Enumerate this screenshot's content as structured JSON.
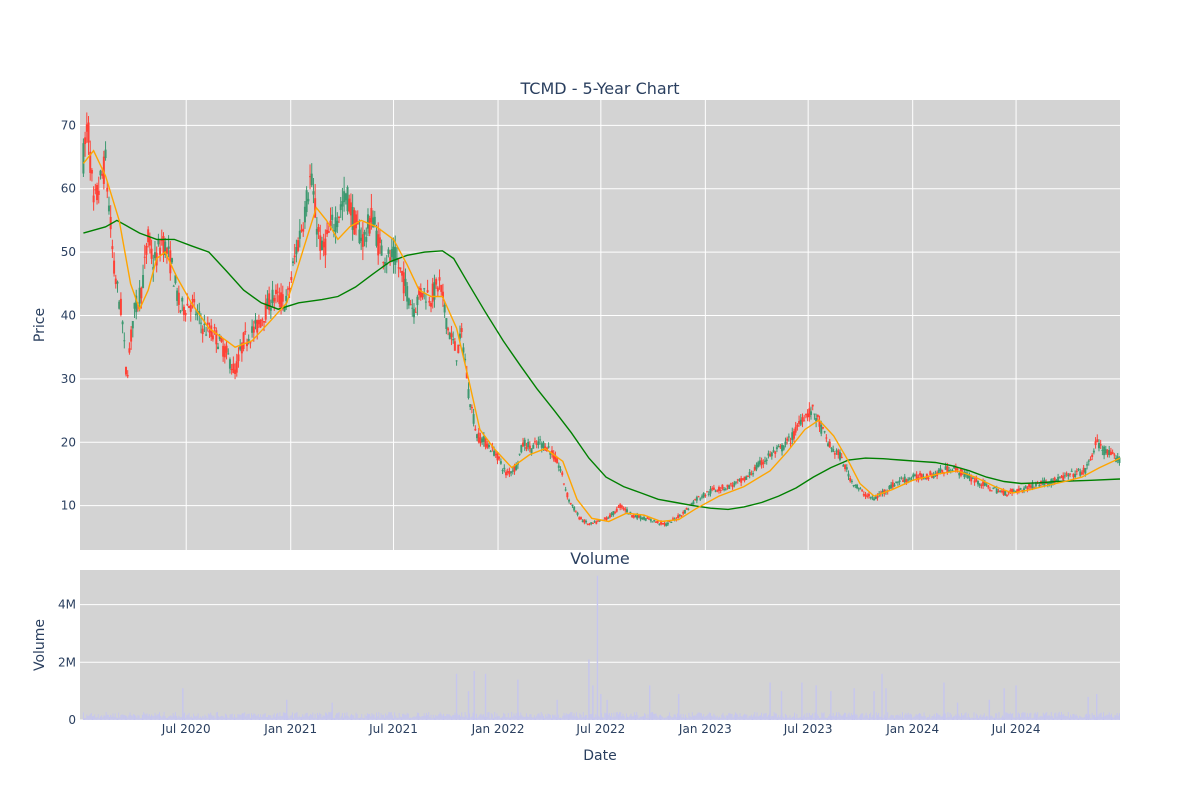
{
  "chart_data": [
    {
      "type": "candlestick",
      "title": "TCMD - 5-Year Chart",
      "ylabel": "Price",
      "ylim": [
        3,
        74
      ],
      "yticks": [
        10,
        20,
        30,
        40,
        50,
        60,
        70
      ],
      "xlim": [
        "2019-12-27",
        "2024-12-31"
      ],
      "xticks": [
        {
          "date": "2020-07-01",
          "label": "Jul 2020"
        },
        {
          "date": "2021-01-01",
          "label": "Jan 2021"
        },
        {
          "date": "2021-07-01",
          "label": "Jul 2021"
        },
        {
          "date": "2022-01-01",
          "label": "Jan 2022"
        },
        {
          "date": "2022-07-01",
          "label": "Jul 2022"
        },
        {
          "date": "2023-01-01",
          "label": "Jan 2023"
        },
        {
          "date": "2023-07-01",
          "label": "Jul 2023"
        },
        {
          "date": "2024-01-01",
          "label": "Jan 2024"
        },
        {
          "date": "2024-07-01",
          "label": "Jul 2024"
        }
      ],
      "grid": true,
      "colors": {
        "increasing": "#3d9970",
        "decreasing": "#ff4136",
        "ma_short": "#ffa500",
        "ma_long": "#008000",
        "plot_bg": "#d3d3d3"
      },
      "price_path": [
        [
          "2020-01-02",
          65
        ],
        [
          "2020-01-10",
          70
        ],
        [
          "2020-01-20",
          57
        ],
        [
          "2020-02-10",
          64
        ],
        [
          "2020-02-25",
          47
        ],
        [
          "2020-03-10",
          40
        ],
        [
          "2020-03-18",
          30
        ],
        [
          "2020-03-30",
          40
        ],
        [
          "2020-04-15",
          45
        ],
        [
          "2020-04-25",
          52
        ],
        [
          "2020-05-05",
          48
        ],
        [
          "2020-05-20",
          52
        ],
        [
          "2020-06-05",
          48
        ],
        [
          "2020-06-20",
          41
        ],
        [
          "2020-07-10",
          42
        ],
        [
          "2020-08-01",
          38
        ],
        [
          "2020-08-20",
          37
        ],
        [
          "2020-09-10",
          34
        ],
        [
          "2020-09-25",
          31
        ],
        [
          "2020-10-10",
          36
        ],
        [
          "2020-11-01",
          38
        ],
        [
          "2020-12-01",
          43
        ],
        [
          "2020-12-25",
          42
        ],
        [
          "2021-01-10",
          50
        ],
        [
          "2021-01-25",
          56
        ],
        [
          "2021-02-05",
          62
        ],
        [
          "2021-02-15",
          55
        ],
        [
          "2021-02-25",
          50
        ],
        [
          "2021-03-10",
          53
        ],
        [
          "2021-03-25",
          56
        ],
        [
          "2021-04-10",
          59
        ],
        [
          "2021-04-25",
          54
        ],
        [
          "2021-05-10",
          52
        ],
        [
          "2021-05-25",
          56
        ],
        [
          "2021-06-05",
          51
        ],
        [
          "2021-06-20",
          49
        ],
        [
          "2021-07-05",
          49
        ],
        [
          "2021-07-20",
          45
        ],
        [
          "2021-08-05",
          41
        ],
        [
          "2021-08-20",
          44
        ],
        [
          "2021-09-05",
          43
        ],
        [
          "2021-09-20",
          45
        ],
        [
          "2021-10-05",
          38
        ],
        [
          "2021-10-20",
          34
        ],
        [
          "2021-10-30",
          37
        ],
        [
          "2021-11-10",
          28
        ],
        [
          "2021-11-25",
          21
        ],
        [
          "2021-12-10",
          20
        ],
        [
          "2021-12-30",
          18
        ],
        [
          "2022-01-15",
          15
        ],
        [
          "2022-02-01",
          16
        ],
        [
          "2022-02-15",
          20
        ],
        [
          "2022-03-01",
          19
        ],
        [
          "2022-03-15",
          20
        ],
        [
          "2022-04-01",
          19
        ],
        [
          "2022-04-20",
          16
        ],
        [
          "2022-05-05",
          11
        ],
        [
          "2022-05-25",
          8
        ],
        [
          "2022-06-10",
          7
        ],
        [
          "2022-06-30",
          7.5
        ],
        [
          "2022-07-20",
          8.5
        ],
        [
          "2022-08-05",
          10
        ],
        [
          "2022-08-25",
          8.5
        ],
        [
          "2022-09-15",
          8
        ],
        [
          "2022-10-05",
          7.5
        ],
        [
          "2022-10-25",
          7
        ],
        [
          "2022-11-10",
          8
        ],
        [
          "2022-11-25",
          9
        ],
        [
          "2022-12-15",
          11
        ],
        [
          "2023-01-15",
          12.5
        ],
        [
          "2023-02-10",
          13
        ],
        [
          "2023-03-10",
          14
        ],
        [
          "2023-04-01",
          16
        ],
        [
          "2023-04-25",
          18
        ],
        [
          "2023-05-15",
          19
        ],
        [
          "2023-06-05",
          21
        ],
        [
          "2023-06-20",
          24
        ],
        [
          "2023-07-10",
          25
        ],
        [
          "2023-07-25",
          22
        ],
        [
          "2023-08-10",
          19
        ],
        [
          "2023-08-25",
          18
        ],
        [
          "2023-09-15",
          14
        ],
        [
          "2023-10-05",
          12
        ],
        [
          "2023-10-25",
          11
        ],
        [
          "2023-11-15",
          12.5
        ],
        [
          "2023-12-10",
          14
        ],
        [
          "2024-01-10",
          14.5
        ],
        [
          "2024-02-10",
          15
        ],
        [
          "2024-03-10",
          16
        ],
        [
          "2024-04-10",
          14.5
        ],
        [
          "2024-05-10",
          13
        ],
        [
          "2024-06-10",
          12
        ],
        [
          "2024-07-10",
          12.5
        ],
        [
          "2024-08-10",
          13.5
        ],
        [
          "2024-09-10",
          14
        ],
        [
          "2024-10-10",
          15
        ],
        [
          "2024-11-01",
          15.5
        ],
        [
          "2024-11-20",
          20
        ],
        [
          "2024-12-05",
          18.5
        ],
        [
          "2024-12-31",
          17
        ]
      ],
      "ma_short_path": [
        [
          "2020-01-02",
          64
        ],
        [
          "2020-01-20",
          66
        ],
        [
          "2020-02-10",
          62
        ],
        [
          "2020-03-05",
          55
        ],
        [
          "2020-03-25",
          45
        ],
        [
          "2020-04-10",
          41
        ],
        [
          "2020-04-25",
          44
        ],
        [
          "2020-05-10",
          49
        ],
        [
          "2020-05-25",
          50
        ],
        [
          "2020-06-15",
          46
        ],
        [
          "2020-07-10",
          42
        ],
        [
          "2020-08-10",
          38
        ],
        [
          "2020-09-10",
          36
        ],
        [
          "2020-09-25",
          35
        ],
        [
          "2020-10-25",
          36
        ],
        [
          "2020-11-25",
          39
        ],
        [
          "2020-12-25",
          42
        ],
        [
          "2021-01-25",
          51
        ],
        [
          "2021-02-15",
          57
        ],
        [
          "2021-03-05",
          55
        ],
        [
          "2021-03-25",
          52
        ],
        [
          "2021-04-15",
          54
        ],
        [
          "2021-05-05",
          55
        ],
        [
          "2021-06-01",
          54
        ],
        [
          "2021-07-01",
          52
        ],
        [
          "2021-07-25",
          48
        ],
        [
          "2021-08-15",
          44
        ],
        [
          "2021-09-05",
          43
        ],
        [
          "2021-09-25",
          43
        ],
        [
          "2021-10-20",
          38
        ],
        [
          "2021-11-10",
          30
        ],
        [
          "2021-11-30",
          22
        ],
        [
          "2021-12-25",
          19
        ],
        [
          "2022-01-25",
          16
        ],
        [
          "2022-02-25",
          18
        ],
        [
          "2022-03-25",
          19
        ],
        [
          "2022-04-25",
          17
        ],
        [
          "2022-05-20",
          11
        ],
        [
          "2022-06-15",
          8
        ],
        [
          "2022-07-15",
          7.5
        ],
        [
          "2022-08-15",
          8.8
        ],
        [
          "2022-09-15",
          8.5
        ],
        [
          "2022-10-15",
          7.5
        ],
        [
          "2022-11-15",
          7.8
        ],
        [
          "2022-12-15",
          9.5
        ],
        [
          "2023-01-25",
          11.5
        ],
        [
          "2023-03-10",
          13
        ],
        [
          "2023-04-25",
          15.5
        ],
        [
          "2023-05-25",
          18.5
        ],
        [
          "2023-06-25",
          22
        ],
        [
          "2023-07-20",
          23.5
        ],
        [
          "2023-08-15",
          21
        ],
        [
          "2023-09-10",
          17
        ],
        [
          "2023-09-30",
          13.5
        ],
        [
          "2023-10-25",
          11.5
        ],
        [
          "2023-11-25",
          12.5
        ],
        [
          "2024-01-01",
          14
        ],
        [
          "2024-02-15",
          15
        ],
        [
          "2024-03-20",
          15.5
        ],
        [
          "2024-04-20",
          14.5
        ],
        [
          "2024-05-25",
          13
        ],
        [
          "2024-06-25",
          12
        ],
        [
          "2024-07-25",
          12.5
        ],
        [
          "2024-08-25",
          13.2
        ],
        [
          "2024-09-25",
          13.8
        ],
        [
          "2024-10-25",
          14.5
        ],
        [
          "2024-11-25",
          16
        ],
        [
          "2024-12-31",
          17.5
        ]
      ],
      "ma_long_path": [
        [
          "2020-01-02",
          53
        ],
        [
          "2020-02-10",
          54
        ],
        [
          "2020-03-01",
          55
        ],
        [
          "2020-04-10",
          53
        ],
        [
          "2020-05-10",
          52
        ],
        [
          "2020-06-10",
          52
        ],
        [
          "2020-07-10",
          51
        ],
        [
          "2020-08-10",
          50
        ],
        [
          "2020-09-10",
          47
        ],
        [
          "2020-10-10",
          44
        ],
        [
          "2020-11-10",
          42
        ],
        [
          "2020-12-10",
          41
        ],
        [
          "2021-01-15",
          42
        ],
        [
          "2021-02-25",
          42.5
        ],
        [
          "2021-03-25",
          43
        ],
        [
          "2021-04-25",
          44.5
        ],
        [
          "2021-05-25",
          46.5
        ],
        [
          "2021-06-25",
          48.5
        ],
        [
          "2021-07-25",
          49.5
        ],
        [
          "2021-08-25",
          50
        ],
        [
          "2021-09-25",
          50.2
        ],
        [
          "2021-10-15",
          49
        ],
        [
          "2021-11-10",
          45
        ],
        [
          "2021-12-10",
          40.5
        ],
        [
          "2022-01-10",
          36
        ],
        [
          "2022-02-10",
          32
        ],
        [
          "2022-03-10",
          28.5
        ],
        [
          "2022-04-10",
          25
        ],
        [
          "2022-05-10",
          21.5
        ],
        [
          "2022-06-10",
          17.5
        ],
        [
          "2022-07-10",
          14.5
        ],
        [
          "2022-08-10",
          13
        ],
        [
          "2022-09-10",
          12
        ],
        [
          "2022-10-10",
          11
        ],
        [
          "2022-11-10",
          10.5
        ],
        [
          "2022-12-10",
          10
        ],
        [
          "2023-01-10",
          9.6
        ],
        [
          "2023-02-10",
          9.4
        ],
        [
          "2023-03-10",
          9.8
        ],
        [
          "2023-04-10",
          10.5
        ],
        [
          "2023-05-10",
          11.5
        ],
        [
          "2023-06-10",
          12.8
        ],
        [
          "2023-07-10",
          14.5
        ],
        [
          "2023-08-10",
          16
        ],
        [
          "2023-09-10",
          17.2
        ],
        [
          "2023-10-10",
          17.5
        ],
        [
          "2023-11-10",
          17.4
        ],
        [
          "2023-12-10",
          17.2
        ],
        [
          "2024-01-10",
          17
        ],
        [
          "2024-02-10",
          16.8
        ],
        [
          "2024-03-10",
          16.3
        ],
        [
          "2024-04-10",
          15.5
        ],
        [
          "2024-05-10",
          14.5
        ],
        [
          "2024-06-10",
          13.8
        ],
        [
          "2024-07-10",
          13.5
        ],
        [
          "2024-08-10",
          13.6
        ],
        [
          "2024-09-10",
          13.8
        ],
        [
          "2024-10-10",
          13.9
        ],
        [
          "2024-11-10",
          14
        ],
        [
          "2024-12-31",
          14.2
        ]
      ]
    },
    {
      "type": "bar",
      "title": "Volume",
      "xlabel": "Date",
      "ylabel": "Volume",
      "ylim": [
        0,
        5200000
      ],
      "yticks": [
        {
          "value": 0,
          "label": "0"
        },
        {
          "value": 2000000,
          "label": "2M"
        },
        {
          "value": 4000000,
          "label": "4M"
        }
      ],
      "grid": true,
      "colors": {
        "bar": "#c6c6ee",
        "plot_bg": "#d3d3d3"
      },
      "spikes": [
        [
          "2020-06-25",
          1100000
        ],
        [
          "2020-12-25",
          700000
        ],
        [
          "2021-03-15",
          600000
        ],
        [
          "2021-10-20",
          1600000
        ],
        [
          "2021-11-10",
          1000000
        ],
        [
          "2021-11-20",
          1700000
        ],
        [
          "2021-12-10",
          1600000
        ],
        [
          "2022-02-05",
          1400000
        ],
        [
          "2022-04-15",
          700000
        ],
        [
          "2022-06-10",
          2100000
        ],
        [
          "2022-06-17",
          1200000
        ],
        [
          "2022-06-25",
          5000000
        ],
        [
          "2022-07-01",
          900000
        ],
        [
          "2022-07-12",
          700000
        ],
        [
          "2022-09-25",
          1200000
        ],
        [
          "2022-11-15",
          900000
        ],
        [
          "2023-04-25",
          1300000
        ],
        [
          "2023-05-15",
          1000000
        ],
        [
          "2023-06-20",
          1300000
        ],
        [
          "2023-07-15",
          1200000
        ],
        [
          "2023-08-10",
          1000000
        ],
        [
          "2023-09-20",
          1100000
        ],
        [
          "2023-10-25",
          1000000
        ],
        [
          "2023-11-08",
          1600000
        ],
        [
          "2023-11-15",
          1100000
        ],
        [
          "2024-02-25",
          1300000
        ],
        [
          "2024-03-20",
          600000
        ],
        [
          "2024-05-15",
          700000
        ],
        [
          "2024-06-10",
          1100000
        ],
        [
          "2024-07-01",
          1200000
        ],
        [
          "2024-11-05",
          800000
        ],
        [
          "2024-11-20",
          900000
        ]
      ]
    }
  ]
}
